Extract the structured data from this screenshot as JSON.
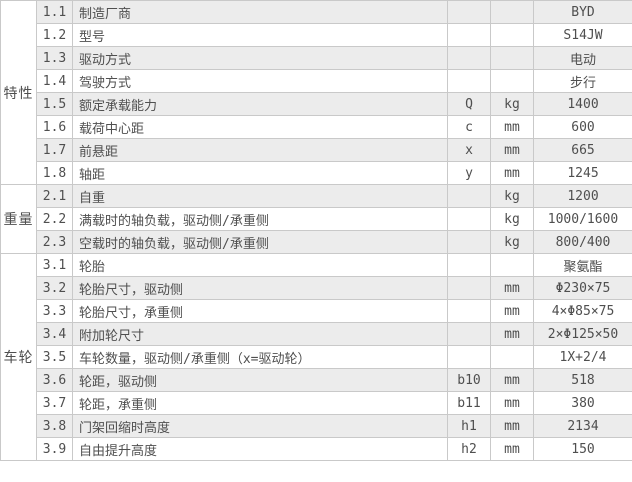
{
  "colors": {
    "stripe": "#ececec",
    "border": "#c9c9c9",
    "text": "#4f4f4f",
    "background": "#ffffff"
  },
  "table": {
    "groups": [
      {
        "label": "特性",
        "rows": [
          {
            "no": "1.1",
            "desc": "制造厂商",
            "sym": "",
            "unit": "",
            "value": "BYD"
          },
          {
            "no": "1.2",
            "desc": "型号",
            "sym": "",
            "unit": "",
            "value": "S14JW"
          },
          {
            "no": "1.3",
            "desc": "驱动方式",
            "sym": "",
            "unit": "",
            "value": "电动"
          },
          {
            "no": "1.4",
            "desc": "驾驶方式",
            "sym": "",
            "unit": "",
            "value": "步行"
          },
          {
            "no": "1.5",
            "desc": "额定承载能力",
            "sym": "Q",
            "unit": "kg",
            "value": "1400"
          },
          {
            "no": "1.6",
            "desc": "载荷中心距",
            "sym": "c",
            "unit": "mm",
            "value": "600"
          },
          {
            "no": "1.7",
            "desc": "前悬距",
            "sym": "x",
            "unit": "mm",
            "value": "665"
          },
          {
            "no": "1.8",
            "desc": "轴距",
            "sym": "y",
            "unit": "mm",
            "value": "1245"
          }
        ]
      },
      {
        "label": "重量",
        "rows": [
          {
            "no": "2.1",
            "desc": "自重",
            "sym": "",
            "unit": "kg",
            "value": "1200"
          },
          {
            "no": "2.2",
            "desc": "满载时的轴负载，驱动侧/承重侧",
            "sym": "",
            "unit": "kg",
            "value": "1000/1600"
          },
          {
            "no": "2.3",
            "desc": "空载时的轴负载，驱动侧/承重侧",
            "sym": "",
            "unit": "kg",
            "value": "800/400"
          }
        ]
      },
      {
        "label": "车轮",
        "rows": [
          {
            "no": "3.1",
            "desc": "轮胎",
            "sym": "",
            "unit": "",
            "value": "聚氨酯"
          },
          {
            "no": "3.2",
            "desc": "轮胎尺寸，驱动侧",
            "sym": "",
            "unit": "mm",
            "value": "Φ230×75"
          },
          {
            "no": "3.3",
            "desc": "轮胎尺寸，承重侧",
            "sym": "",
            "unit": "mm",
            "value": "4×Φ85×75"
          },
          {
            "no": "3.4",
            "desc": "附加轮尺寸",
            "sym": "",
            "unit": "mm",
            "value": "2×Φ125×50"
          },
          {
            "no": "3.5",
            "desc": "车轮数量，驱动侧/承重侧（x=驱动轮）",
            "sym": "",
            "unit": "",
            "value": "1X+2/4"
          },
          {
            "no": "3.6",
            "desc": "轮距，驱动侧",
            "sym": "b10",
            "unit": "mm",
            "value": "518"
          },
          {
            "no": "3.7",
            "desc": "轮距，承重侧",
            "sym": "b11",
            "unit": "mm",
            "value": "380"
          },
          {
            "no": "3.8",
            "desc": "门架回缩时高度",
            "sym": "h1",
            "unit": "mm",
            "value": "2134"
          },
          {
            "no": "3.9",
            "desc": "自由提升高度",
            "sym": "h2",
            "unit": "mm",
            "value": "150"
          }
        ]
      }
    ]
  }
}
